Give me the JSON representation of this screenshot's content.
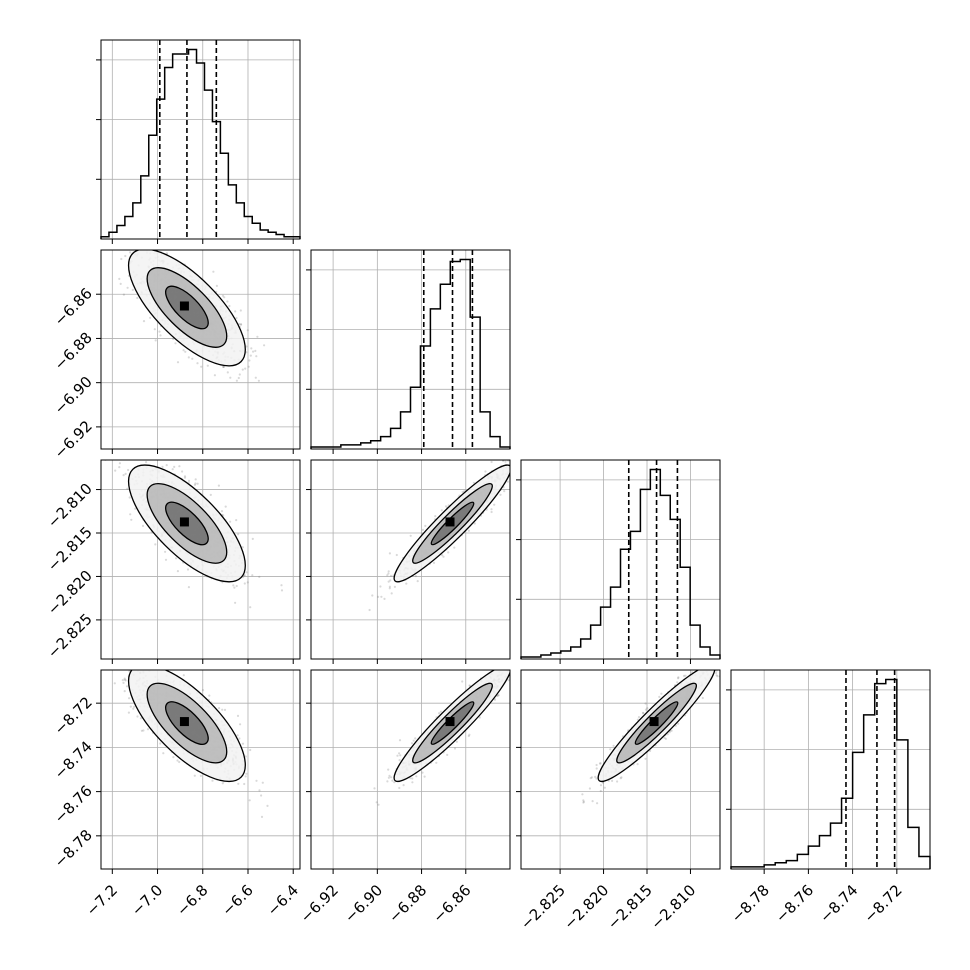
{
  "chart_data": {
    "type": "corner",
    "grid": true,
    "quantile_lines": [
      0.16,
      0.5,
      0.84
    ],
    "parameters": [
      {
        "id": "p1",
        "range": [
          -7.25,
          -6.37
        ],
        "ticks": [
          -7.2,
          -7.0,
          -6.8,
          -6.6,
          -6.4
        ],
        "tick_labels": [
          "−7.2",
          "−7.0",
          "−6.8",
          "−6.6",
          "−6.4"
        ],
        "median": -6.87,
        "quantiles": [
          -6.99,
          -6.87,
          -6.74
        ],
        "hist": [
          1,
          3,
          6,
          10,
          16,
          28,
          46,
          62,
          76,
          82,
          82,
          84,
          78,
          66,
          52,
          38,
          24,
          16,
          10,
          7,
          4,
          3,
          2,
          1,
          1
        ]
      },
      {
        "id": "p2",
        "range": [
          -6.93,
          -6.84
        ],
        "ticks": [
          -6.92,
          -6.9,
          -6.88,
          -6.86
        ],
        "tick_labels": [
          "−6.92",
          "−6.90",
          "−6.88",
          "−6.86"
        ],
        "median": -6.866,
        "quantiles": [
          -6.879,
          -6.866,
          -6.857
        ],
        "hist": [
          1,
          1,
          1,
          2,
          2,
          3,
          4,
          6,
          10,
          18,
          30,
          50,
          68,
          80,
          91,
          92,
          64,
          18,
          6,
          1
        ]
      },
      {
        "id": "p3",
        "range": [
          -2.8295,
          -2.8066
        ],
        "ticks": [
          -2.825,
          -2.82,
          -2.815,
          -2.81
        ],
        "tick_labels": [
          "−2.825",
          "−2.820",
          "−2.815",
          "−2.810"
        ],
        "median": -2.8139,
        "quantiles": [
          -2.8171,
          -2.8139,
          -2.8115
        ],
        "hist": [
          1,
          1,
          2,
          3,
          4,
          6,
          10,
          17,
          26,
          36,
          55,
          64,
          85,
          95,
          82,
          70,
          46,
          17,
          6,
          2
        ]
      },
      {
        "id": "p4",
        "range": [
          -8.795,
          -8.705
        ],
        "ticks": [
          -8.78,
          -8.76,
          -8.74,
          -8.72
        ],
        "tick_labels": [
          "−8.78",
          "−8.76",
          "−8.74",
          "−8.72"
        ],
        "median": -8.729,
        "quantiles": [
          -8.743,
          -8.729,
          -8.721
        ],
        "hist": [
          1,
          1,
          1,
          2,
          3,
          4,
          7,
          11,
          16,
          22,
          34,
          56,
          74,
          89,
          91,
          62,
          20,
          6
        ]
      }
    ]
  }
}
